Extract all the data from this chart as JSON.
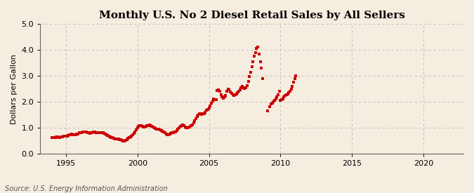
{
  "title": "Monthly U.S. No 2 Diesel Retail Sales by All Sellers",
  "ylabel": "Dollars per Gallon",
  "source": "Source: U.S. Energy Information Administration",
  "ylim": [
    0.0,
    5.0
  ],
  "yticks": [
    0.0,
    1.0,
    2.0,
    3.0,
    4.0,
    5.0
  ],
  "xlim_start": 1993.2,
  "xlim_end": 2022.8,
  "xticks": [
    1995,
    2000,
    2005,
    2010,
    2015,
    2020
  ],
  "line_color": "#cc0000",
  "marker": "s",
  "marker_size": 2.8,
  "bg_color": "#f5ede0",
  "plot_bg_color": "#f5ede0",
  "grid_color": "#aaaaaa",
  "title_fontsize": 11,
  "label_fontsize": 8,
  "tick_fontsize": 8,
  "source_fontsize": 7,
  "data": [
    [
      1994.0,
      0.63
    ],
    [
      1994.083,
      0.62
    ],
    [
      1994.167,
      0.62
    ],
    [
      1994.25,
      0.63
    ],
    [
      1994.333,
      0.64
    ],
    [
      1994.417,
      0.64
    ],
    [
      1994.5,
      0.63
    ],
    [
      1994.583,
      0.63
    ],
    [
      1994.667,
      0.64
    ],
    [
      1994.75,
      0.65
    ],
    [
      1994.833,
      0.67
    ],
    [
      1994.917,
      0.68
    ],
    [
      1995.0,
      0.68
    ],
    [
      1995.083,
      0.68
    ],
    [
      1995.167,
      0.69
    ],
    [
      1995.25,
      0.72
    ],
    [
      1995.333,
      0.74
    ],
    [
      1995.417,
      0.75
    ],
    [
      1995.5,
      0.73
    ],
    [
      1995.583,
      0.72
    ],
    [
      1995.667,
      0.73
    ],
    [
      1995.75,
      0.75
    ],
    [
      1995.833,
      0.77
    ],
    [
      1995.917,
      0.8
    ],
    [
      1996.0,
      0.82
    ],
    [
      1996.083,
      0.82
    ],
    [
      1996.167,
      0.83
    ],
    [
      1996.25,
      0.84
    ],
    [
      1996.333,
      0.85
    ],
    [
      1996.417,
      0.84
    ],
    [
      1996.5,
      0.82
    ],
    [
      1996.583,
      0.8
    ],
    [
      1996.667,
      0.79
    ],
    [
      1996.75,
      0.8
    ],
    [
      1996.833,
      0.82
    ],
    [
      1996.917,
      0.84
    ],
    [
      1997.0,
      0.83
    ],
    [
      1997.083,
      0.82
    ],
    [
      1997.167,
      0.82
    ],
    [
      1997.25,
      0.82
    ],
    [
      1997.333,
      0.82
    ],
    [
      1997.417,
      0.82
    ],
    [
      1997.5,
      0.81
    ],
    [
      1997.583,
      0.8
    ],
    [
      1997.667,
      0.78
    ],
    [
      1997.75,
      0.77
    ],
    [
      1997.833,
      0.74
    ],
    [
      1997.917,
      0.71
    ],
    [
      1998.0,
      0.68
    ],
    [
      1998.083,
      0.65
    ],
    [
      1998.167,
      0.63
    ],
    [
      1998.25,
      0.61
    ],
    [
      1998.333,
      0.59
    ],
    [
      1998.417,
      0.58
    ],
    [
      1998.5,
      0.58
    ],
    [
      1998.583,
      0.57
    ],
    [
      1998.667,
      0.56
    ],
    [
      1998.75,
      0.55
    ],
    [
      1998.833,
      0.54
    ],
    [
      1998.917,
      0.52
    ],
    [
      1999.0,
      0.5
    ],
    [
      1999.083,
      0.5
    ],
    [
      1999.167,
      0.51
    ],
    [
      1999.25,
      0.55
    ],
    [
      1999.333,
      0.59
    ],
    [
      1999.417,
      0.62
    ],
    [
      1999.5,
      0.64
    ],
    [
      1999.583,
      0.67
    ],
    [
      1999.667,
      0.72
    ],
    [
      1999.75,
      0.78
    ],
    [
      1999.833,
      0.85
    ],
    [
      1999.917,
      0.92
    ],
    [
      2000.0,
      1.0
    ],
    [
      2000.083,
      1.05
    ],
    [
      2000.167,
      1.08
    ],
    [
      2000.25,
      1.07
    ],
    [
      2000.333,
      1.05
    ],
    [
      2000.417,
      1.03
    ],
    [
      2000.5,
      1.04
    ],
    [
      2000.583,
      1.06
    ],
    [
      2000.667,
      1.07
    ],
    [
      2000.75,
      1.09
    ],
    [
      2000.833,
      1.1
    ],
    [
      2000.917,
      1.08
    ],
    [
      2001.0,
      1.05
    ],
    [
      2001.083,
      1.02
    ],
    [
      2001.167,
      0.99
    ],
    [
      2001.25,
      0.97
    ],
    [
      2001.333,
      0.96
    ],
    [
      2001.417,
      0.96
    ],
    [
      2001.5,
      0.95
    ],
    [
      2001.583,
      0.93
    ],
    [
      2001.667,
      0.9
    ],
    [
      2001.75,
      0.87
    ],
    [
      2001.833,
      0.84
    ],
    [
      2001.917,
      0.8
    ],
    [
      2002.0,
      0.76
    ],
    [
      2002.083,
      0.73
    ],
    [
      2002.167,
      0.74
    ],
    [
      2002.25,
      0.76
    ],
    [
      2002.333,
      0.78
    ],
    [
      2002.417,
      0.8
    ],
    [
      2002.5,
      0.82
    ],
    [
      2002.583,
      0.83
    ],
    [
      2002.667,
      0.85
    ],
    [
      2002.75,
      0.9
    ],
    [
      2002.833,
      0.96
    ],
    [
      2002.917,
      1.0
    ],
    [
      2003.0,
      1.05
    ],
    [
      2003.083,
      1.08
    ],
    [
      2003.167,
      1.12
    ],
    [
      2003.25,
      1.07
    ],
    [
      2003.333,
      1.02
    ],
    [
      2003.417,
      1.0
    ],
    [
      2003.5,
      1.0
    ],
    [
      2003.583,
      1.02
    ],
    [
      2003.667,
      1.04
    ],
    [
      2003.75,
      1.07
    ],
    [
      2003.833,
      1.12
    ],
    [
      2003.917,
      1.18
    ],
    [
      2004.0,
      1.26
    ],
    [
      2004.083,
      1.35
    ],
    [
      2004.167,
      1.44
    ],
    [
      2004.25,
      1.5
    ],
    [
      2004.333,
      1.55
    ],
    [
      2004.417,
      1.53
    ],
    [
      2004.5,
      1.52
    ],
    [
      2004.583,
      1.53
    ],
    [
      2004.667,
      1.55
    ],
    [
      2004.75,
      1.6
    ],
    [
      2004.833,
      1.67
    ],
    [
      2004.917,
      1.7
    ],
    [
      2005.0,
      1.75
    ],
    [
      2005.083,
      1.83
    ],
    [
      2005.167,
      1.96
    ],
    [
      2005.25,
      2.02
    ],
    [
      2005.333,
      2.1
    ],
    [
      2005.417,
      2.08
    ],
    [
      2005.5,
      2.08
    ],
    [
      2005.583,
      2.43
    ],
    [
      2005.667,
      2.45
    ],
    [
      2005.75,
      2.42
    ],
    [
      2005.833,
      2.28
    ],
    [
      2005.917,
      2.18
    ],
    [
      2006.0,
      2.15
    ],
    [
      2006.083,
      2.18
    ],
    [
      2006.167,
      2.25
    ],
    [
      2006.25,
      2.4
    ],
    [
      2006.333,
      2.5
    ],
    [
      2006.417,
      2.47
    ],
    [
      2006.5,
      2.38
    ],
    [
      2006.583,
      2.32
    ],
    [
      2006.667,
      2.28
    ],
    [
      2006.75,
      2.25
    ],
    [
      2006.833,
      2.28
    ],
    [
      2006.917,
      2.3
    ],
    [
      2007.0,
      2.35
    ],
    [
      2007.083,
      2.4
    ],
    [
      2007.167,
      2.45
    ],
    [
      2007.25,
      2.55
    ],
    [
      2007.333,
      2.6
    ],
    [
      2007.417,
      2.55
    ],
    [
      2007.5,
      2.52
    ],
    [
      2007.583,
      2.55
    ],
    [
      2007.667,
      2.62
    ],
    [
      2007.75,
      2.78
    ],
    [
      2007.833,
      2.98
    ],
    [
      2007.917,
      3.15
    ],
    [
      2008.0,
      3.35
    ],
    [
      2008.083,
      3.55
    ],
    [
      2008.167,
      3.75
    ],
    [
      2008.25,
      3.9
    ],
    [
      2008.333,
      4.05
    ],
    [
      2008.417,
      4.12
    ],
    [
      2008.5,
      3.85
    ],
    [
      2008.583,
      3.55
    ],
    [
      2008.667,
      3.3
    ],
    [
      2008.75,
      2.9
    ],
    [
      2009.083,
      1.65
    ],
    [
      2009.25,
      1.82
    ],
    [
      2009.333,
      1.92
    ],
    [
      2009.417,
      1.95
    ],
    [
      2009.5,
      2.0
    ],
    [
      2009.583,
      2.05
    ],
    [
      2009.667,
      2.1
    ],
    [
      2009.75,
      2.18
    ],
    [
      2009.833,
      2.28
    ],
    [
      2009.917,
      2.4
    ],
    [
      2010.0,
      2.05
    ],
    [
      2010.083,
      2.08
    ],
    [
      2010.167,
      2.12
    ],
    [
      2010.25,
      2.18
    ],
    [
      2010.333,
      2.25
    ],
    [
      2010.417,
      2.28
    ],
    [
      2010.5,
      2.3
    ],
    [
      2010.583,
      2.35
    ],
    [
      2010.667,
      2.4
    ],
    [
      2010.75,
      2.5
    ],
    [
      2010.833,
      2.6
    ],
    [
      2010.917,
      2.75
    ],
    [
      2011.0,
      2.9
    ],
    [
      2011.083,
      3.0
    ]
  ]
}
